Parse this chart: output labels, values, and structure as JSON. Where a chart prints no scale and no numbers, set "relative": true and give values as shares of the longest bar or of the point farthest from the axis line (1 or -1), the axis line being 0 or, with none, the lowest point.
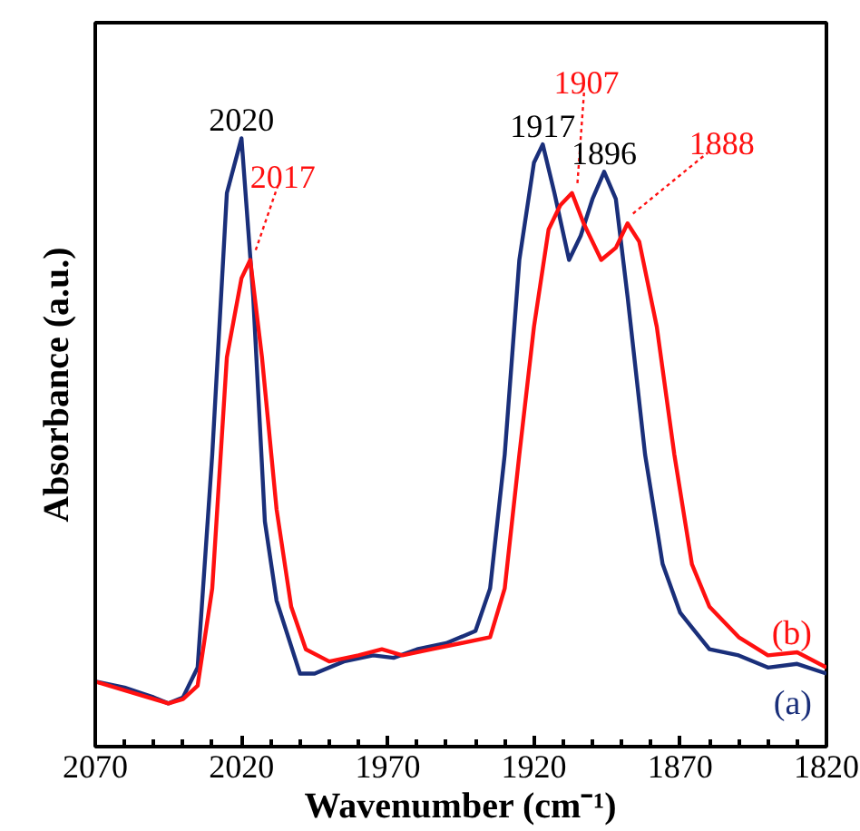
{
  "chart_data": {
    "type": "line",
    "relative": true,
    "xlabel": "Wavenumber (cm⁻¹)",
    "ylabel": "Absorbance (a.u.)",
    "xlim": [
      2070,
      1820
    ],
    "xticks": [
      2070,
      2020,
      1970,
      1920,
      1870,
      1820
    ],
    "grid": false,
    "legend": false,
    "marker": "none",
    "line_style": "solid",
    "series": [
      {
        "name": "(a)",
        "color": "#1a2f7a",
        "x": [
          2070,
          2060,
          2050,
          2045,
          2040,
          2035,
          2030,
          2025,
          2020,
          2016,
          2012,
          2008,
          2000,
          1995,
          1985,
          1975,
          1968,
          1960,
          1950,
          1940,
          1935,
          1930,
          1925,
          1920,
          1917,
          1913,
          1908,
          1904,
          1900,
          1896,
          1892,
          1888,
          1882,
          1876,
          1870,
          1860,
          1850,
          1840,
          1830,
          1820
        ],
        "values": [
          0.107,
          0.097,
          0.081,
          0.071,
          0.081,
          0.13,
          0.48,
          0.91,
          1.0,
          0.74,
          0.37,
          0.24,
          0.12,
          0.12,
          0.14,
          0.15,
          0.146,
          0.16,
          0.17,
          0.19,
          0.26,
          0.48,
          0.8,
          0.96,
          0.99,
          0.91,
          0.8,
          0.84,
          0.9,
          0.945,
          0.9,
          0.74,
          0.48,
          0.3,
          0.22,
          0.16,
          0.15,
          0.13,
          0.136,
          0.12
        ]
      },
      {
        "name": "(b)",
        "color": "#ff1010",
        "x": [
          2070,
          2045,
          2040,
          2035,
          2030,
          2025,
          2020,
          2017,
          2013,
          2008,
          2003,
          1998,
          1990,
          1980,
          1972,
          1965,
          1955,
          1945,
          1935,
          1930,
          1925,
          1920,
          1915,
          1911,
          1907,
          1903,
          1897,
          1892,
          1888,
          1884,
          1878,
          1872,
          1866,
          1860,
          1850,
          1840,
          1830,
          1820
        ],
        "values": [
          0.107,
          0.071,
          0.078,
          0.1,
          0.26,
          0.64,
          0.77,
          0.8,
          0.64,
          0.39,
          0.23,
          0.16,
          0.14,
          0.15,
          0.16,
          0.15,
          0.16,
          0.17,
          0.18,
          0.26,
          0.48,
          0.69,
          0.85,
          0.89,
          0.91,
          0.86,
          0.8,
          0.82,
          0.86,
          0.83,
          0.69,
          0.48,
          0.3,
          0.23,
          0.18,
          0.15,
          0.155,
          0.13
        ]
      }
    ],
    "annotations": [
      {
        "text": "2020",
        "x": 2020,
        "y": 1.0
      },
      {
        "text": "2017",
        "x": 2017,
        "y": 0.8
      },
      {
        "text": "1917",
        "x": 1917,
        "y": 0.99
      },
      {
        "text": "1907",
        "x": 1907,
        "y": 0.91
      },
      {
        "text": "1896",
        "x": 1896,
        "y": 0.945
      },
      {
        "text": "1888",
        "x": 1888,
        "y": 0.86
      }
    ]
  }
}
